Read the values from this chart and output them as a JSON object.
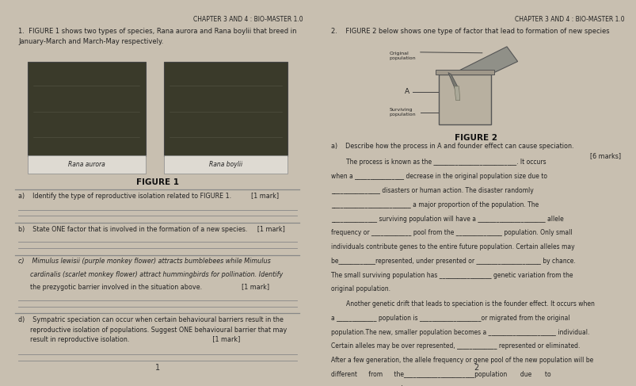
{
  "bg_color": "#c8bfb0",
  "paper_color": "#ede9e0",
  "title": "CHAPTER 3 AND 4 : BIO-MASTER 1.0",
  "q1_intro": "1.  FIGURE 1 shows two types of species, Rana aurora and Rana boylii that breed in\nJanuary-March and March-May respectively.",
  "figure1_label": "FIGURE 1",
  "figure2_label": "FIGURE 2",
  "q1a": "a)    Identify the type of reproductive isolation related to FIGURE 1.          [1 mark]",
  "q1b": "b)    State ONE factor that is involved in the formation of a new species.     [1 mark]",
  "q1c_line1": "c)    Mimulus lewisii (purple monkey flower) attracts bumblebees while Mimulus",
  "q1c_line2": "      cardinalis (scarlet monkey flower) attract hummingbirds for pollination. Identify",
  "q1c_line3": "      the prezygotic barrier involved in the situation above.                    [1 mark]",
  "q1d_text": "d)    Sympatric speciation can occur when certain behavioural barriers result in the\n      reproductive isolation of populations. Suggest ONE behavioural barrier that may\n      result in reproductive isolation.                                          [1 mark]",
  "q2_intro": "2.    FIGURE 2 below shows one type of factor that lead to formation of new species",
  "q2a_head": "a)    Describe how the process in A and founder effect can cause speciation.",
  "q2a_marks": "[6 marks]",
  "page_num_left": "1",
  "page_num_right": "2",
  "label_aurora": "Rana aurora",
  "label_boylii": "Rana boylii",
  "fig2_orig": "Original\npopulation",
  "fig2_surv": "Surviving\npopulation",
  "fig2_A": "A",
  "q2_lines": [
    "        The process is known as the ___________________________. It occurs",
    "when a ________________ decrease in the original population size due to",
    "________________ disasters or human action. The disaster randomly",
    "__________________________ a major proportion of the population. The",
    "_______________ surviving population will have a ______________________ allele",
    "frequency or _____________ pool from the _______________ population. Only small",
    "individuals contribute genes to the entire future population. Certain alleles may",
    "be____________represented, under presented or _____________________ by chance.",
    "The small surviving population has _________________ genetic variation from the",
    "original population."
  ],
  "q2_lines2": [
    "        Another genetic drift that leads to speciation is the founder effect. It occurs when",
    "a _____________ population is ____________________or migrated from the original",
    "population.The new, smaller population becomes a ______________________ individual.",
    "Certain alleles may be over represented, _____________ represented or eliminated.",
    "After a few generation, the allele frequency or gene pool of the new population will be",
    "different      from      the_______________________population       due       to",
    "___________________ and ________________________________process."
  ]
}
